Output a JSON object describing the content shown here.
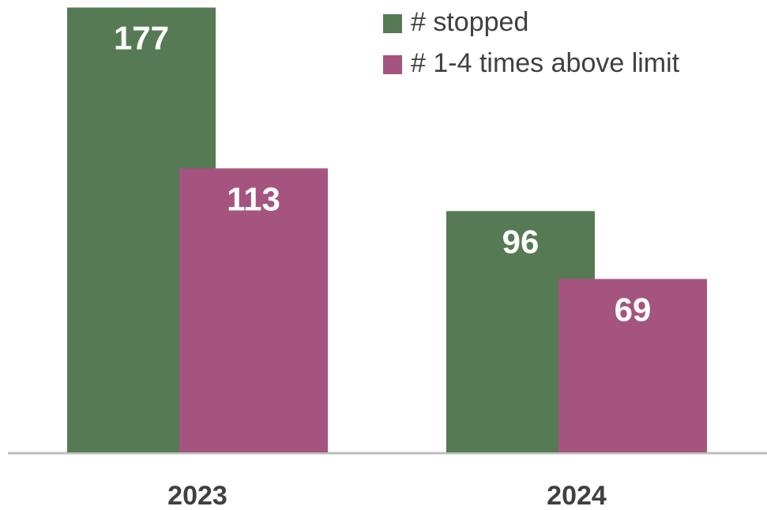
{
  "chart_data": {
    "type": "bar",
    "categories": [
      "2023",
      "2024"
    ],
    "series": [
      {
        "name": "# stopped",
        "color": "#567a53",
        "values": [
          177,
          96
        ]
      },
      {
        "name": "# 1-4 times above limit",
        "color": "#a55480",
        "values": [
          113,
          69
        ]
      }
    ],
    "ylim": [
      0,
      180
    ]
  }
}
